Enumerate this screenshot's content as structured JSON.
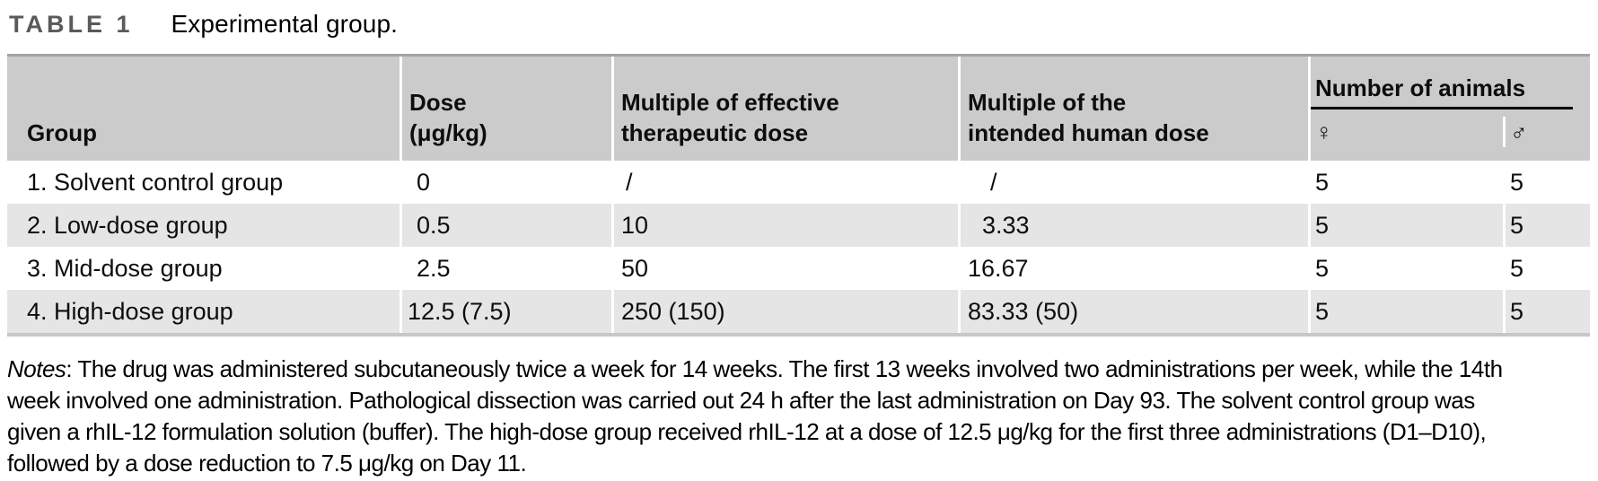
{
  "title": {
    "label": "TABLE 1",
    "caption": "Experimental group."
  },
  "table": {
    "columns": {
      "group": "Group",
      "dose_line1": "Dose",
      "dose_line2": "(μg/kg)",
      "moe_line1": "Multiple of effective",
      "moe_line2": "therapeutic dose",
      "moi_line1": "Multiple of the",
      "moi_line2": "intended human dose",
      "animals": "Number of animals",
      "female_symbol": "♀",
      "male_symbol": "♂"
    },
    "rows": [
      {
        "group": "1. Solvent control group",
        "dose": "0",
        "moe": "/",
        "moi": "/",
        "female": "5",
        "male": "5"
      },
      {
        "group": "2. Low-dose group",
        "dose": "0.5",
        "moe": "10",
        "moi": "3.33",
        "female": "5",
        "male": "5"
      },
      {
        "group": "3. Mid-dose group",
        "dose": "2.5",
        "moe": "50",
        "moi": "16.67",
        "female": "5",
        "male": "5"
      },
      {
        "group": "4. High-dose group",
        "dose": "12.5 (7.5)",
        "moe": "250 (150)",
        "moi": "83.33 (50)",
        "female": "5",
        "male": "5"
      }
    ]
  },
  "notes": {
    "label": "Notes",
    "line1": ": The drug was administered subcutaneously twice a week for 14 weeks. The first 13 weeks involved two administrations per week, while the 14th",
    "line2": "week involved one administration. Pathological dissection was carried out 24 h after the last administration on Day 93. The solvent control group was",
    "line3": "given a rhIL-12 formulation solution (buffer). The high-dose group received rhIL-12 at a dose of 12.5 μg/kg for the first three administrations (D1–D10),",
    "line4": "followed by a dose reduction to 7.5 μg/kg on Day 11."
  }
}
